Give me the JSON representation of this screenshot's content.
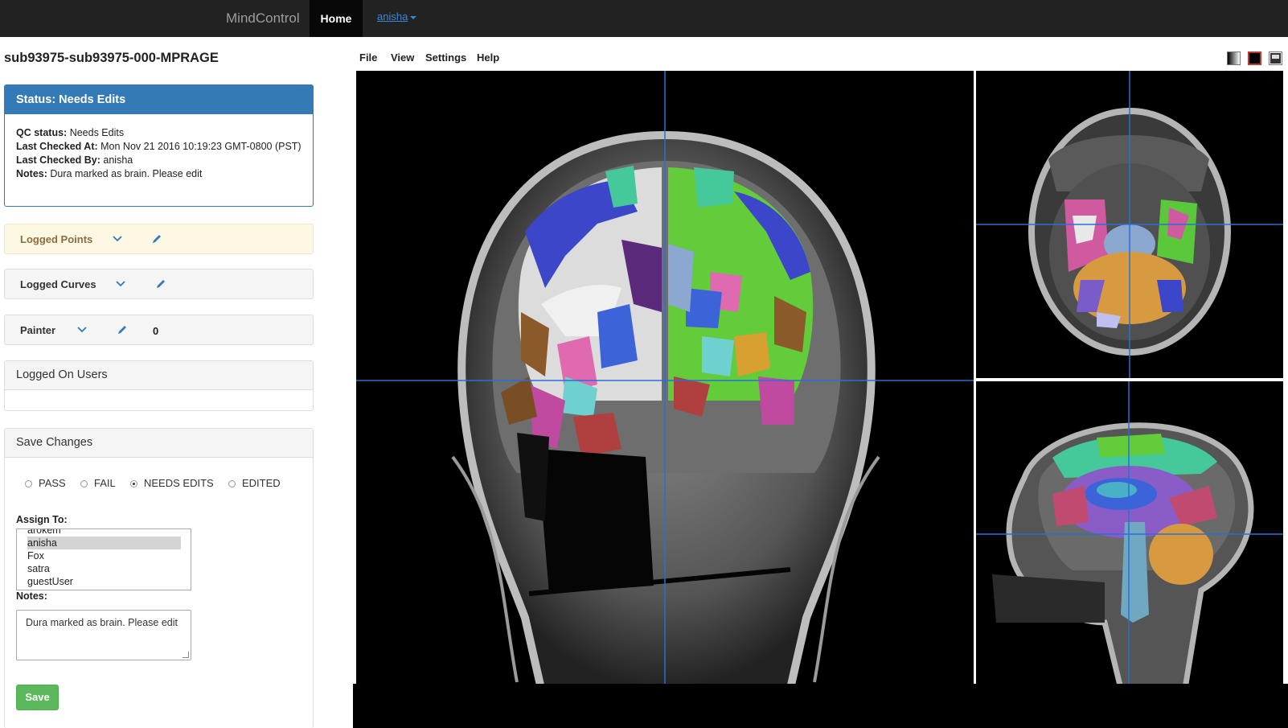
{
  "navbar": {
    "brand": "MindControl",
    "home_label": "Home",
    "user_label": "anisha"
  },
  "subject": {
    "title": "sub93975-sub93975-000-MPRAGE"
  },
  "status": {
    "header": "Status: Needs Edits",
    "qc_label": "QC status:",
    "qc_value": "Needs Edits",
    "checked_at_label": "Last Checked At:",
    "checked_at_value": "Mon Nov 21 2016 10:19:23 GMT-0800 (PST)",
    "checked_by_label": "Last Checked By:",
    "checked_by_value": "anisha",
    "notes_label": "Notes:",
    "notes_value": "Dura marked as brain. Please edit"
  },
  "tools": {
    "logged_points": "Logged Points",
    "logged_curves": "Logged Curves",
    "painter": "Painter",
    "painter_count": "0"
  },
  "logged_users": {
    "header": "Logged On Users"
  },
  "save_changes": {
    "header": "Save Changes",
    "options": [
      "PASS",
      "FAIL",
      "NEEDS EDITS",
      "EDITED"
    ],
    "selected": "NEEDS EDITS",
    "assign_label": "Assign To:",
    "assignees": [
      "arokem",
      "anisha",
      "Fox",
      "satra",
      "guestUser"
    ],
    "assign_selected": "anisha",
    "notes_label": "Notes:",
    "notes_value": "Dura marked as brain. Please edit",
    "save_label": "Save"
  },
  "viewer": {
    "menu": [
      "File",
      "View",
      "Settings",
      "Help"
    ],
    "color_modes": [
      "grayscale",
      "black",
      "overlay"
    ],
    "views": [
      "coronal",
      "axial",
      "sagittal"
    ]
  },
  "colors": {
    "navbar": "#222222",
    "primary": "#337ab7",
    "success": "#5cb85c",
    "warning_bg": "#fcf8e3",
    "crosshair": "#2a6fd6"
  }
}
